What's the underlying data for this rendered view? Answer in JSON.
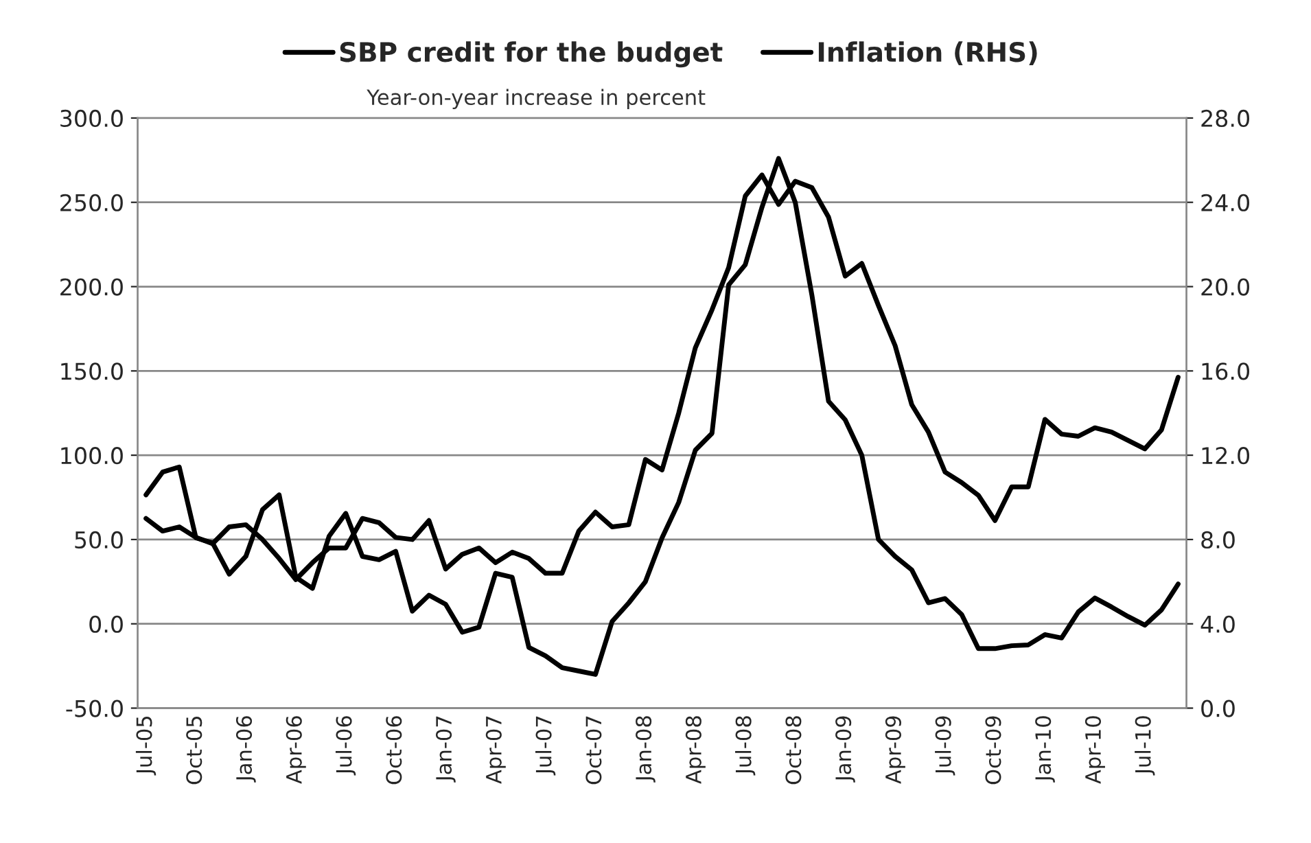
{
  "chart_data": {
    "type": "line",
    "subtitle": "Year-on-year increase in percent",
    "categories": [
      "Jul-05",
      null,
      null,
      "Oct-05",
      null,
      null,
      "Jan-06",
      null,
      null,
      "Apr-06",
      null,
      null,
      "Jul-06",
      null,
      null,
      "Oct-06",
      null,
      null,
      "Jan-07",
      null,
      null,
      "Apr-07",
      null,
      null,
      "Jul-07",
      null,
      null,
      "Oct-07",
      null,
      null,
      "Jan-08",
      null,
      null,
      "Apr-08",
      null,
      null,
      "Jul-08",
      null,
      null,
      "Oct-08",
      null,
      null,
      "Jan-09",
      null,
      null,
      "Apr-09",
      null,
      null,
      "Jul-09",
      null,
      null,
      "Oct-09",
      null,
      null,
      "Jan-10",
      null,
      null,
      "Apr-10",
      null,
      null,
      "Jul-10",
      null,
      null
    ],
    "series": [
      {
        "name": "SBP credit for the budget",
        "color": "#000000",
        "values": [
          76.5,
          90,
          93,
          51,
          48,
          29.5,
          40,
          67.7,
          76.5,
          27.6,
          21,
          52,
          65.5,
          40,
          38,
          43,
          7.5,
          17,
          11.6,
          -5,
          -2,
          30,
          27.6,
          -14,
          -19,
          -26,
          -28,
          -30,
          1.4,
          12.4,
          25,
          51,
          72,
          103,
          113,
          201,
          213,
          247,
          276,
          250,
          195,
          132,
          121,
          100,
          50,
          40,
          32,
          12.5,
          15,
          5.5,
          -14.7,
          -14.7,
          -13,
          -12.5,
          -6.4,
          -8.4,
          7,
          15.3,
          10,
          4.3,
          -0.8,
          8.3,
          23.6
        ]
      },
      {
        "name": "Inflation (RHS)",
        "color": "#000000",
        "axis": "y2",
        "values": [
          9.0,
          8.4,
          8.6,
          8.1,
          7.8,
          8.6,
          8.7,
          8.0,
          7.1,
          6.1,
          6.9,
          7.6,
          7.6,
          9.0,
          8.8,
          8.1,
          8.0,
          8.9,
          6.6,
          7.3,
          7.6,
          6.9,
          7.4,
          7.1,
          6.4,
          6.4,
          8.4,
          9.3,
          8.6,
          8.7,
          11.8,
          11.3,
          14.0,
          17.1,
          18.9,
          20.9,
          24.3,
          25.3,
          23.9,
          25.0,
          24.7,
          23.3,
          20.5,
          21.1,
          19.1,
          17.2,
          14.4,
          13.1,
          11.2,
          10.7,
          10.1,
          8.9,
          10.5,
          10.5,
          13.7,
          13.0,
          12.9,
          13.3,
          13.1,
          12.7,
          12.3,
          13.2,
          15.7
        ]
      }
    ],
    "ylim": [
      -50,
      300
    ],
    "yticks": [
      {
        "value": -50,
        "label": "-50.0"
      },
      {
        "value": 0,
        "label": "0.0"
      },
      {
        "value": 50,
        "label": "50.0"
      },
      {
        "value": 100,
        "label": "100.0"
      },
      {
        "value": 150,
        "label": "150.0"
      },
      {
        "value": 200,
        "label": "200.0"
      },
      {
        "value": 250,
        "label": "250.0"
      },
      {
        "value": 300,
        "label": "300.0"
      }
    ],
    "y2lim": [
      0,
      28
    ],
    "y2ticks": [
      {
        "value": 0,
        "label": "0.0"
      },
      {
        "value": 4,
        "label": "4.0"
      },
      {
        "value": 8,
        "label": "8.0"
      },
      {
        "value": 12,
        "label": "12.0"
      },
      {
        "value": 16,
        "label": "16.0"
      },
      {
        "value": 20,
        "label": "20.0"
      },
      {
        "value": 24,
        "label": "24.0"
      },
      {
        "value": 28,
        "label": "28.0"
      }
    ],
    "grid": "y",
    "legend": "top",
    "marker": "none",
    "line_style": "solid"
  }
}
